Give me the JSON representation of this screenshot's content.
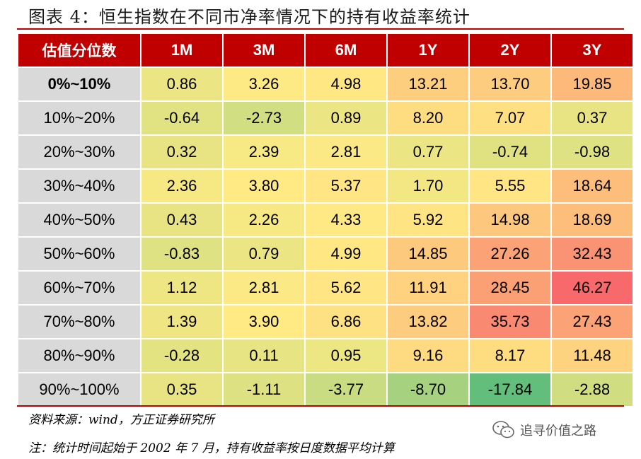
{
  "title": "图表 4：恒生指数在不同市净率情况下的持有收益率统计",
  "source": "资料来源：wind，方正证券研究所",
  "note": "注：统计时间起始于 2002 年 7 月，持有收益率按日度数据平均计算",
  "watermark": {
    "icon": "wechat-icon",
    "text": "追寻价值之路"
  },
  "colors": {
    "header_bg": "#c00000",
    "label_bg": "#d9d9d9",
    "scale_low": "#63be7b",
    "scale_mid": "#ffeb84",
    "scale_high": "#f8696b"
  },
  "chart_data": {
    "type": "heatmap",
    "corner_label": "估值分位数",
    "columns": [
      "1M",
      "3M",
      "6M",
      "1Y",
      "2Y",
      "3Y"
    ],
    "rows": [
      {
        "label": "0%~10%",
        "values": [
          "0.86",
          "3.26",
          "4.98",
          "13.21",
          "13.70",
          "19.85"
        ]
      },
      {
        "label": "10%~20%",
        "values": [
          "-0.64",
          "-2.73",
          "0.89",
          "8.20",
          "7.07",
          "0.37"
        ]
      },
      {
        "label": "20%~30%",
        "values": [
          "0.32",
          "2.39",
          "2.81",
          "0.77",
          "-0.74",
          "-0.98"
        ]
      },
      {
        "label": "30%~40%",
        "values": [
          "2.36",
          "3.80",
          "5.37",
          "1.70",
          "5.55",
          "18.64"
        ]
      },
      {
        "label": "40%~50%",
        "values": [
          "0.43",
          "2.26",
          "4.33",
          "5.92",
          "14.98",
          "18.69"
        ]
      },
      {
        "label": "50%~60%",
        "values": [
          "-0.83",
          "0.79",
          "4.99",
          "14.85",
          "27.26",
          "32.43"
        ]
      },
      {
        "label": "60%~70%",
        "values": [
          "1.12",
          "2.81",
          "5.62",
          "11.91",
          "28.45",
          "46.27"
        ]
      },
      {
        "label": "70%~80%",
        "values": [
          "1.39",
          "3.90",
          "6.86",
          "13.82",
          "35.73",
          "27.43"
        ]
      },
      {
        "label": "80%~90%",
        "values": [
          "-0.28",
          "0.11",
          "0.95",
          "9.16",
          "8.17",
          "11.48"
        ]
      },
      {
        "label": "90%~100%",
        "values": [
          "0.35",
          "-1.11",
          "-3.77",
          "-8.70",
          "-17.84",
          "-2.88"
        ]
      }
    ]
  }
}
